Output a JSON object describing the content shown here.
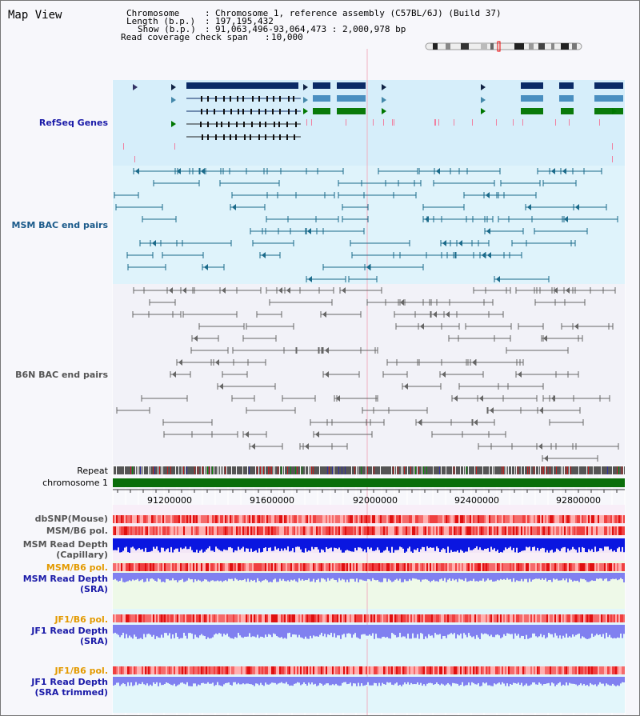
{
  "view_title": "Map View",
  "info": {
    "chromosome_key": "Chromosome",
    "chromosome_value": "Chromosome 1, reference assembly (C57BL/6J) (Build 37)",
    "length_key": "Length (b.p.)",
    "length_value": "197,195,432",
    "show_key": "Show (b.p.)",
    "show_value": "91,063,496-93,064,473 : 2,000,978 bp",
    "span_key": "Read coverage check span",
    "span_value": "10,000"
  },
  "tracks": {
    "refseq": "RefSeq Genes",
    "msm_bac": "MSM BAC end pairs",
    "b6n_bac": "B6N BAC end pairs",
    "repeat": "Repeat",
    "chromosome": "chromosome 1",
    "dbsnp": "dbSNP(Mouse)",
    "msm_b6_pol": "MSM/B6 pol.",
    "msm_depth_cap_1": "MSM Read Depth",
    "msm_depth_cap_2": "(Capillary)",
    "msm_b6_pol_2": "MSM/B6 pol.",
    "msm_depth_sra_1": "MSM Read Depth",
    "msm_depth_sra_2": "(SRA)",
    "jf1_b6_pol": "JF1/B6 pol.",
    "jf1_depth_sra_1": "JF1 Read Depth",
    "jf1_depth_sra_2": "(SRA)",
    "jf1_b6_pol_2": "JF1/B6 pol.",
    "jf1_depth_trim_1": "JF1 Read Depth",
    "jf1_depth_trim_2": "(SRA trimmed)"
  },
  "axis_positions": [
    "91200000",
    "91600000",
    "92000000",
    "92400000",
    "92800000"
  ],
  "colors": {
    "refseq_dark": "#0b2a66",
    "refseq_mid": "#4a8fc0",
    "refseq_green": "#0a7a0a",
    "msm_line": "#1a6a8a",
    "b6n_line": "#666666",
    "chromosome_bar": "#0a6e0a",
    "snp_red": "#f04040",
    "depth_blue": "#0a16e0",
    "depth_light": "#8080f0"
  }
}
